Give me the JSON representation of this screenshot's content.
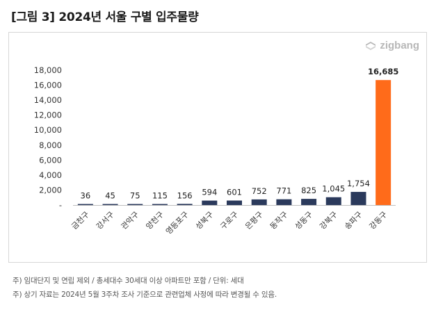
{
  "title": "[그림 3] 2024년 서울 구별 입주물량",
  "logo": {
    "text": "zigbang",
    "icon": "zigbang-logo-icon"
  },
  "colors": {
    "bar": "#2b3a5c",
    "highlight": "#ff6b1a",
    "grid": "#e3e3e3",
    "axis": "#999999",
    "tick": "#333333"
  },
  "notes": [
    "주) 임대단지 및 연립 제외 / 총세대수 30세대 이상 아파트만 포함 / 단위: 세대",
    "주) 상기 자료는 2024년 5월 3주차 조사 기준으로 관련업체 사정에 따라 변경될 수 있음."
  ],
  "chart_data": {
    "type": "bar",
    "title": "2024년 서울 구별 입주물량",
    "xlabel": "",
    "ylabel": "",
    "unit": "세대",
    "categories": [
      "금천구",
      "강서구",
      "관악구",
      "양천구",
      "영등포구",
      "성북구",
      "구로구",
      "은평구",
      "동작구",
      "성동구",
      "강북구",
      "송파구",
      "강동구"
    ],
    "values": [
      36,
      45,
      75,
      115,
      156,
      594,
      601,
      752,
      771,
      825,
      1045,
      1754,
      16685
    ],
    "value_labels": [
      "36",
      "45",
      "75",
      "115",
      "156",
      "594",
      "601",
      "752",
      "771",
      "825",
      "1,045",
      "1,754",
      "16,685"
    ],
    "highlight_category": "강동구",
    "ylim": [
      0,
      18000
    ],
    "yticks": [
      0,
      2000,
      4000,
      6000,
      8000,
      10000,
      12000,
      14000,
      16000,
      18000
    ],
    "ytick_labels": [
      "-",
      "2,000",
      "4,000",
      "6,000",
      "8,000",
      "10,000",
      "12,000",
      "14,000",
      "16,000",
      "18,000"
    ],
    "grid": false,
    "legend": "none"
  }
}
